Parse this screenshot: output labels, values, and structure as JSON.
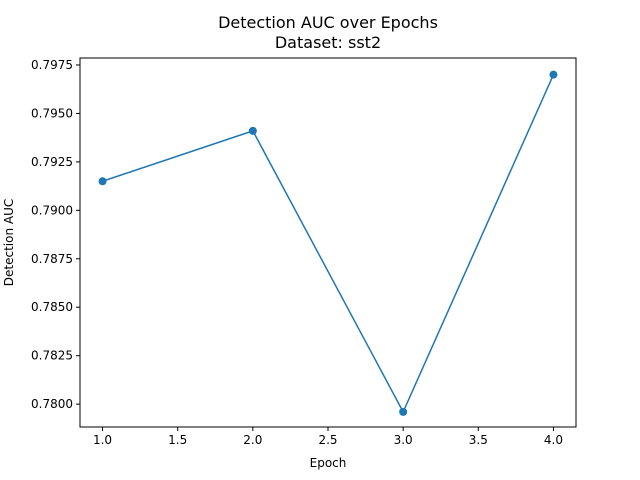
{
  "chart_data": {
    "type": "line",
    "title": "Detection AUC over Epochs",
    "subtitle": "Dataset: sst2",
    "xlabel": "Epoch",
    "ylabel": "Detection AUC",
    "x": [
      1.0,
      2.0,
      3.0,
      4.0
    ],
    "series": [
      {
        "values": [
          0.7915,
          0.7941,
          0.7796,
          0.797
        ],
        "color": "#1f77b4",
        "marker": "circle"
      }
    ],
    "xlim": [
      0.85,
      4.15
    ],
    "ylim": [
      0.77882,
      0.79786
    ],
    "xticks": [
      1.0,
      1.5,
      2.0,
      2.5,
      3.0,
      3.5,
      4.0
    ],
    "xtick_labels": [
      "1.0",
      "1.5",
      "2.0",
      "2.5",
      "3.0",
      "3.5",
      "4.0"
    ],
    "yticks": [
      0.78,
      0.7825,
      0.785,
      0.7875,
      0.79,
      0.7925,
      0.795,
      0.7975
    ],
    "ytick_labels": [
      "0.7800",
      "0.7825",
      "0.7850",
      "0.7875",
      "0.7900",
      "0.7925",
      "0.7950",
      "0.7975"
    ],
    "grid": false,
    "legend": false
  }
}
